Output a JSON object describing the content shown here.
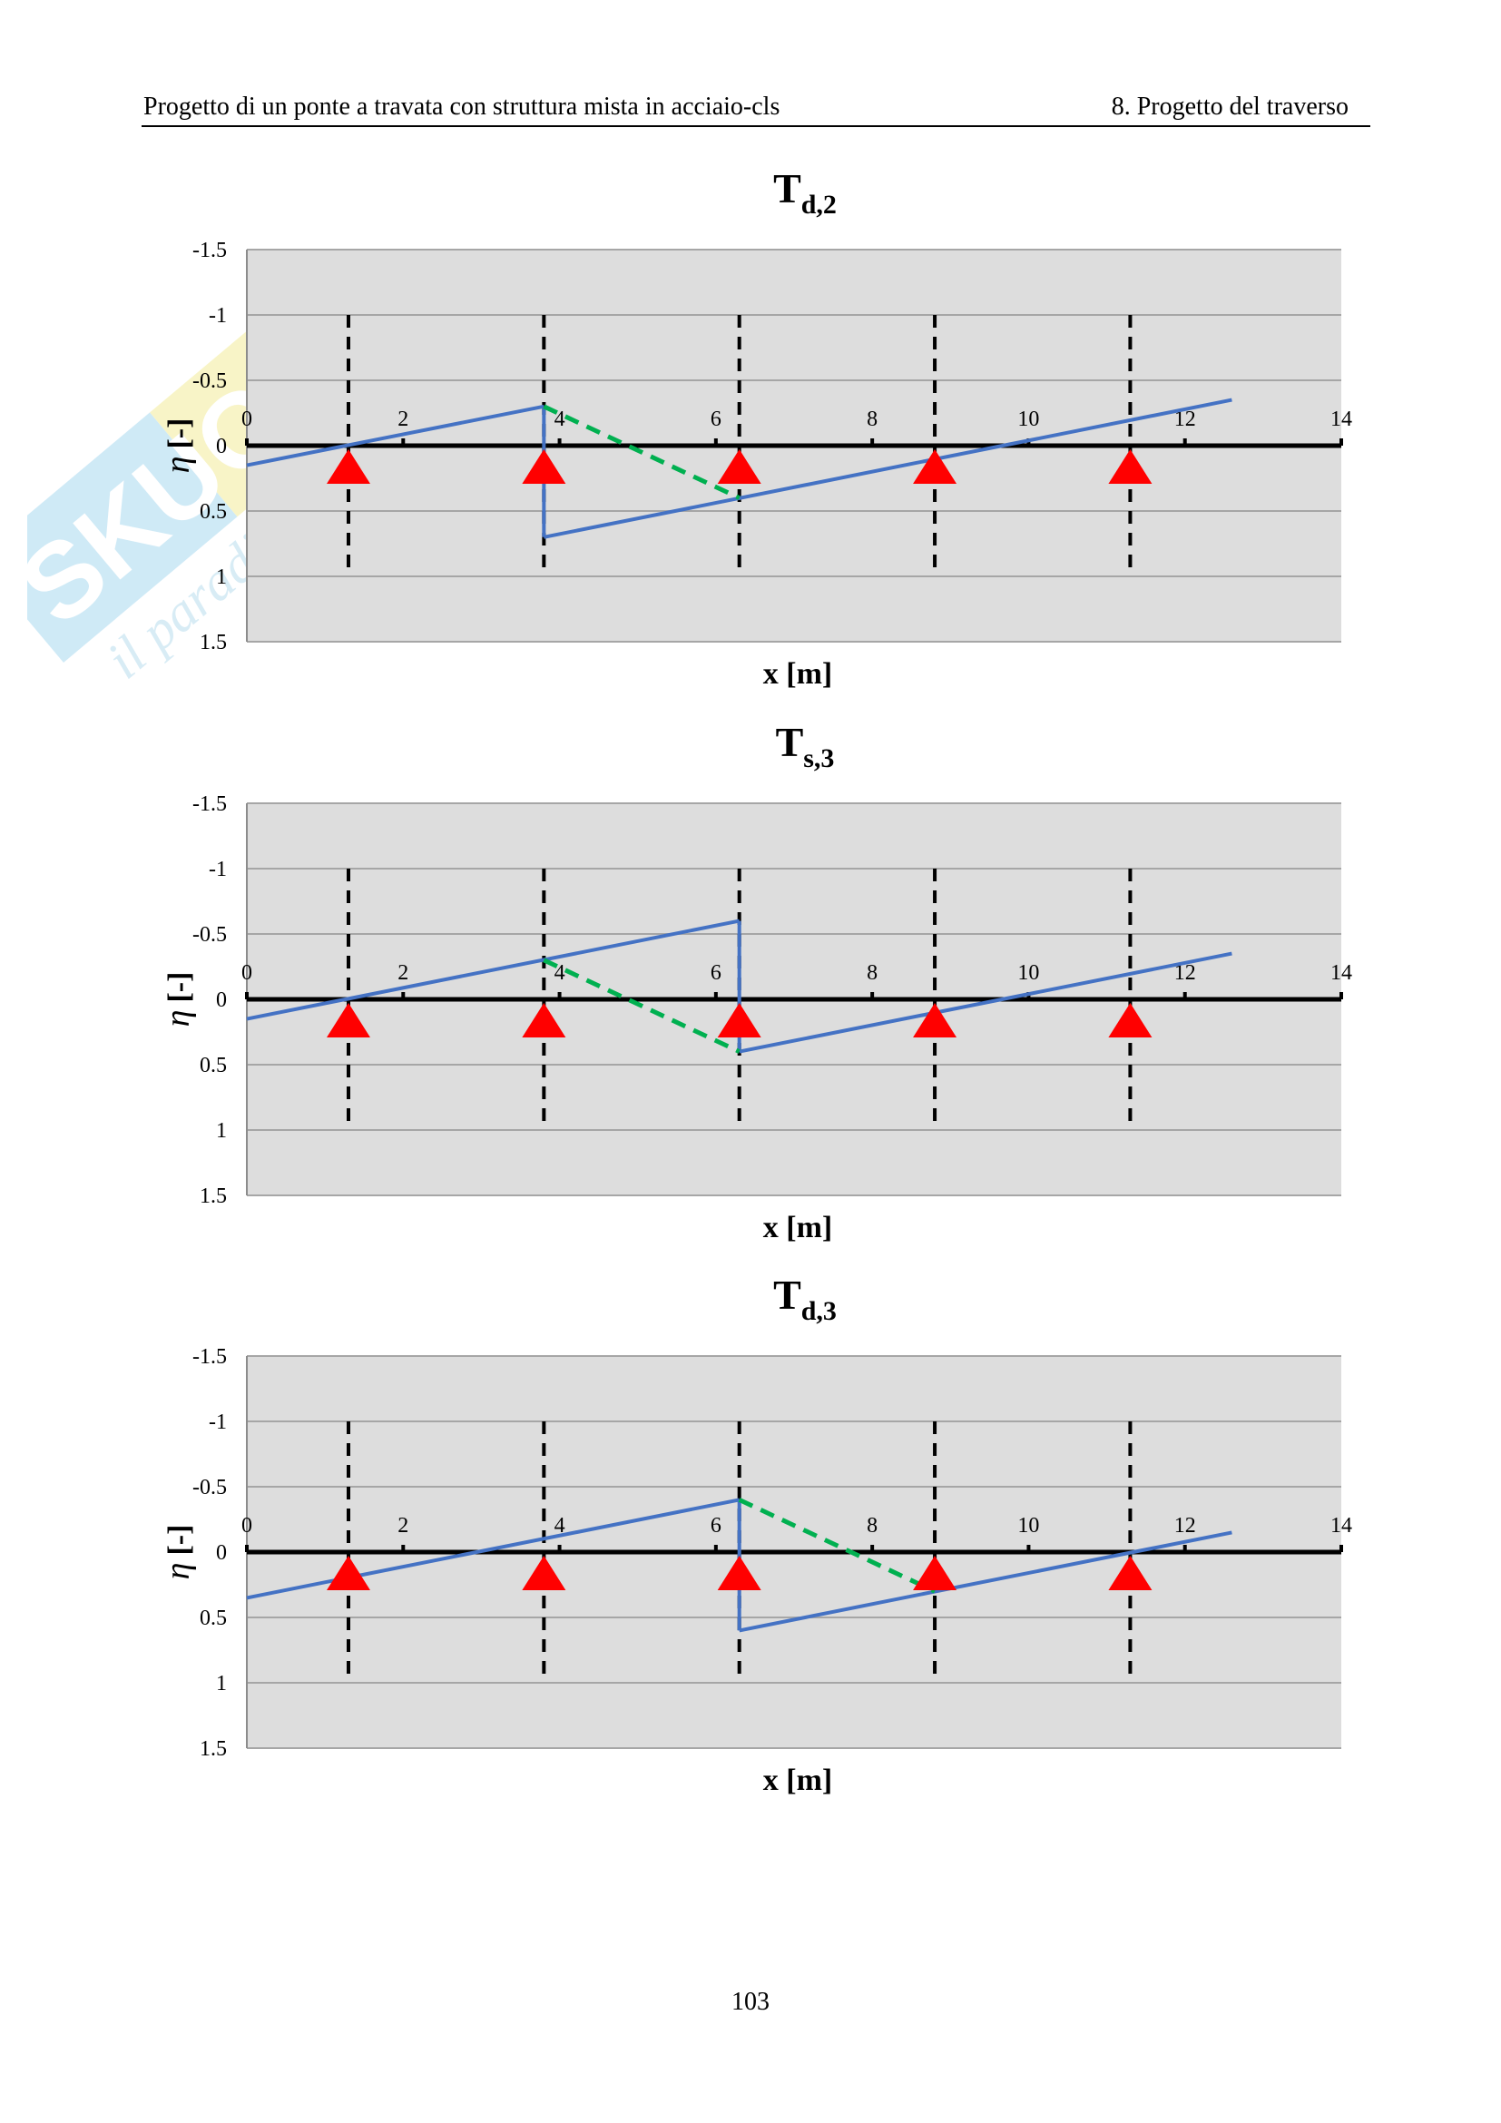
{
  "header": {
    "left": "Progetto di un ponte a travata con struttura mista in acciaio-cls",
    "right": "8. Progetto del traverso"
  },
  "watermark": {
    "brand": "SKUOLA.net",
    "tagline": "il paradiso dello studente"
  },
  "page_number": "103",
  "colors": {
    "plot_bg": "#dddddd",
    "grid": "#a6a6a6",
    "influence_line": "#4472c4",
    "dashed_segment": "#00b050",
    "support": "#ff0000",
    "axis": "#000000"
  },
  "chart_data": [
    {
      "type": "line",
      "title_main": "T",
      "title_sub": "d,2",
      "xlabel": "x [m]",
      "ylabel_symbol": "η",
      "ylabel_unit": "[-]",
      "xlim": [
        0,
        14
      ],
      "ylim": [
        -1.5,
        1.5
      ],
      "y_inverted": true,
      "xticks": [
        0,
        2,
        4,
        6,
        8,
        10,
        12,
        14
      ],
      "yticks": [
        -1.5,
        -1,
        -0.5,
        0,
        0.5,
        1,
        1.5
      ],
      "ytick_labels": [
        "-1.5",
        "-1",
        "-0.5",
        "0",
        "0.5",
        "1",
        "1.5"
      ],
      "grid": true,
      "supports_x": [
        1.3,
        3.8,
        6.3,
        8.8,
        11.3
      ],
      "series": [
        {
          "style": "solid",
          "x": [
            0,
            3.8
          ],
          "y": [
            0.15,
            -0.3
          ]
        },
        {
          "style": "solid",
          "x": [
            3.8,
            3.8
          ],
          "y": [
            -0.3,
            0.7
          ]
        },
        {
          "style": "solid",
          "x": [
            3.8,
            12.6
          ],
          "y": [
            0.7,
            -0.35
          ]
        },
        {
          "style": "dashed",
          "x": [
            3.8,
            6.3
          ],
          "y": [
            -0.3,
            0.4
          ]
        }
      ]
    },
    {
      "type": "line",
      "title_main": "T",
      "title_sub": "s,3",
      "xlabel": "x [m]",
      "ylabel_symbol": "η",
      "ylabel_unit": "[-]",
      "xlim": [
        0,
        14
      ],
      "ylim": [
        -1.5,
        1.5
      ],
      "y_inverted": true,
      "xticks": [
        0,
        2,
        4,
        6,
        8,
        10,
        12,
        14
      ],
      "yticks": [
        -1.5,
        -1,
        -0.5,
        0,
        0.5,
        1,
        1.5
      ],
      "ytick_labels": [
        "-1.5",
        "-1",
        "-0.5",
        "0",
        "0.5",
        "1",
        "1.5"
      ],
      "grid": true,
      "supports_x": [
        1.3,
        3.8,
        6.3,
        8.8,
        11.3
      ],
      "series": [
        {
          "style": "solid",
          "x": [
            0,
            6.3
          ],
          "y": [
            0.15,
            -0.6
          ]
        },
        {
          "style": "solid",
          "x": [
            6.3,
            6.3
          ],
          "y": [
            -0.6,
            0.4
          ]
        },
        {
          "style": "solid",
          "x": [
            6.3,
            12.6
          ],
          "y": [
            0.4,
            -0.35
          ]
        },
        {
          "style": "dashed",
          "x": [
            3.8,
            6.3
          ],
          "y": [
            -0.3,
            0.4
          ]
        }
      ]
    },
    {
      "type": "line",
      "title_main": "T",
      "title_sub": "d,3",
      "xlabel": "x [m]",
      "ylabel_symbol": "η",
      "ylabel_unit": "[-]",
      "xlim": [
        0,
        14
      ],
      "ylim": [
        -1.5,
        1.5
      ],
      "y_inverted": true,
      "xticks": [
        0,
        2,
        4,
        6,
        8,
        10,
        12,
        14
      ],
      "yticks": [
        -1.5,
        -1,
        -0.5,
        0,
        0.5,
        1,
        1.5
      ],
      "ytick_labels": [
        "-1.5",
        "-1",
        "-0.5",
        "0",
        "0.5",
        "1",
        "1.5"
      ],
      "grid": true,
      "supports_x": [
        1.3,
        3.8,
        6.3,
        8.8,
        11.3
      ],
      "series": [
        {
          "style": "solid",
          "x": [
            0,
            6.3
          ],
          "y": [
            0.35,
            -0.4
          ]
        },
        {
          "style": "solid",
          "x": [
            6.3,
            6.3
          ],
          "y": [
            -0.4,
            0.6
          ]
        },
        {
          "style": "solid",
          "x": [
            6.3,
            12.6
          ],
          "y": [
            0.6,
            -0.15
          ]
        },
        {
          "style": "dashed",
          "x": [
            6.3,
            8.8
          ],
          "y": [
            -0.4,
            0.3
          ]
        }
      ]
    }
  ]
}
